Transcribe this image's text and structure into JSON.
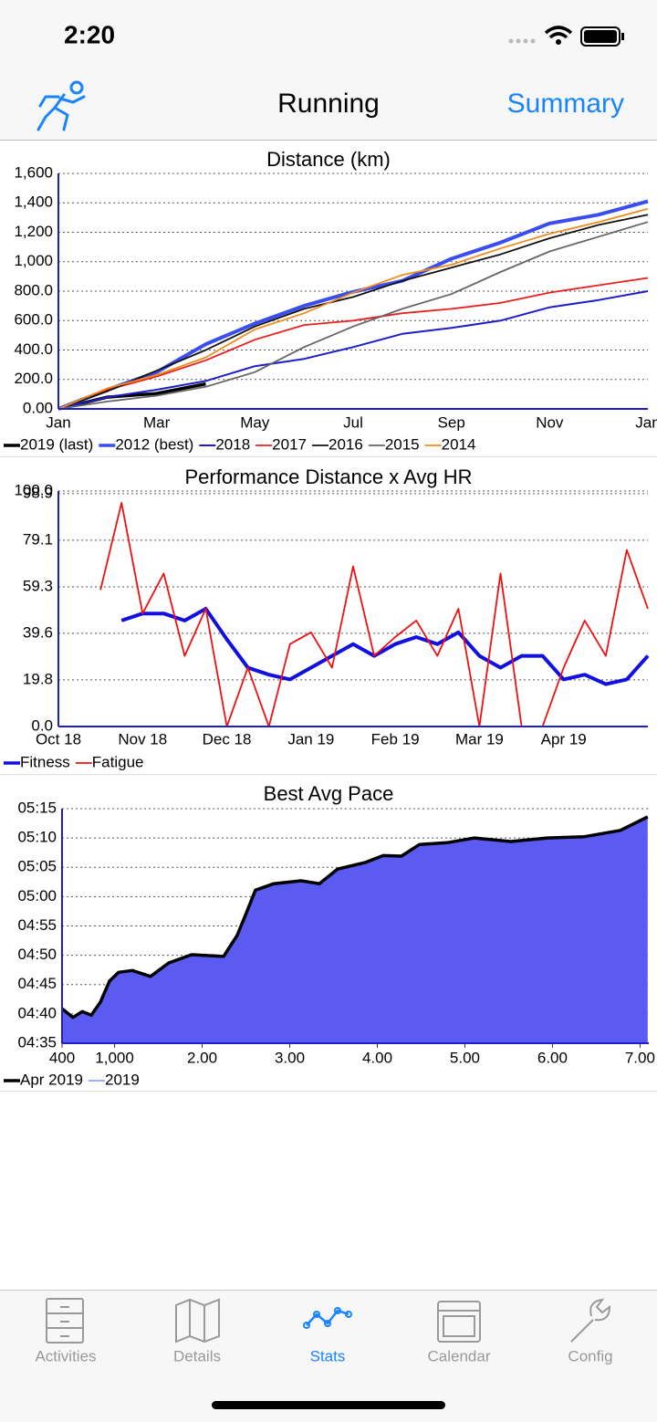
{
  "status_bar": {
    "time": "2:20"
  },
  "nav": {
    "title": "Running",
    "action": "Summary"
  },
  "chart_data": [
    {
      "type": "line",
      "title": "Distance (km)",
      "categories": [
        "Jan",
        null,
        "Mar",
        null,
        "May",
        null,
        "Jul",
        null,
        "Sep",
        null,
        "Nov",
        null,
        "Jan"
      ],
      "ylim": [
        0,
        1600
      ],
      "yticks": [
        {
          "value": 0,
          "label": "0.00"
        },
        {
          "value": 200,
          "label": "200.0"
        },
        {
          "value": 400,
          "label": "400.0"
        },
        {
          "value": 600,
          "label": "600.0"
        },
        {
          "value": 800,
          "label": "800.0"
        },
        {
          "value": 1000,
          "label": "1,000"
        },
        {
          "value": 1200,
          "label": "1,200"
        },
        {
          "value": 1400,
          "label": "1,400"
        },
        {
          "value": 1600,
          "label": "1,600"
        }
      ],
      "grid": true,
      "series": [
        {
          "name": "2019 (last)",
          "color": "#000000",
          "width": 3.5,
          "values": [
            0,
            80,
            105,
            170,
            null,
            null,
            null,
            null,
            null,
            null,
            null,
            null,
            null
          ]
        },
        {
          "name": "2012 (best)",
          "color": "#3a4ef0",
          "width": 4,
          "values": [
            0,
            130,
            250,
            440,
            580,
            700,
            795,
            870,
            1020,
            1130,
            1260,
            1320,
            1410
          ]
        },
        {
          "name": "2018",
          "color": "#1e1ec8",
          "width": 2,
          "values": [
            0,
            80,
            130,
            190,
            290,
            340,
            420,
            510,
            550,
            600,
            690,
            740,
            800
          ]
        },
        {
          "name": "2017",
          "color": "#e82020",
          "width": 1.8,
          "values": [
            0,
            130,
            220,
            330,
            470,
            570,
            600,
            650,
            680,
            720,
            790,
            840,
            890
          ]
        },
        {
          "name": "2016",
          "color": "#111111",
          "width": 1.8,
          "values": [
            0,
            120,
            260,
            400,
            560,
            680,
            760,
            870,
            960,
            1050,
            1160,
            1250,
            1320
          ]
        },
        {
          "name": "2015",
          "color": "#666666",
          "width": 1.8,
          "values": [
            0,
            50,
            90,
            150,
            250,
            420,
            560,
            680,
            780,
            930,
            1070,
            1170,
            1270
          ]
        },
        {
          "name": "2014",
          "color": "#f08c1e",
          "width": 1.8,
          "values": [
            0,
            140,
            230,
            350,
            540,
            650,
            790,
            910,
            980,
            1090,
            1190,
            1270,
            1360
          ]
        }
      ]
    },
    {
      "type": "line",
      "title": "Performance Distance x Avg HR",
      "categories": [
        "Oct 18",
        null,
        null,
        null,
        "Nov 18",
        null,
        null,
        null,
        "Dec 18",
        null,
        null,
        null,
        "Jan 19",
        null,
        null,
        null,
        "Feb 19",
        null,
        null,
        null,
        "Mar 19",
        null,
        null,
        null,
        "Apr 19",
        null,
        null,
        null,
        null
      ],
      "ylim": [
        0,
        100
      ],
      "yticks": [
        {
          "value": 0,
          "label": "0.0"
        },
        19.8,
        39.6,
        59.3,
        79.1,
        98.9,
        {
          "value": 100,
          "label": "100.0"
        }
      ],
      "grid": true,
      "series": [
        {
          "name": "Fitness",
          "color": "#1010e0",
          "width": 4,
          "values": [
            null,
            null,
            null,
            45,
            48,
            48,
            45,
            50,
            37,
            25,
            22,
            20,
            25,
            30,
            35,
            30,
            35,
            38,
            35,
            40,
            30,
            25,
            30,
            30,
            20,
            22,
            18,
            20,
            30
          ]
        },
        {
          "name": "Fatigue",
          "color": "#f01010",
          "width": 1.8,
          "values": [
            null,
            null,
            58,
            95,
            48,
            65,
            30,
            50,
            0,
            25,
            0,
            35,
            40,
            25,
            68,
            30,
            38,
            45,
            30,
            50,
            0,
            65,
            0,
            0,
            25,
            45,
            30,
            75,
            50
          ]
        }
      ]
    },
    {
      "type": "area",
      "title": "Best Avg Pace",
      "x": [
        400,
        525,
        630,
        733,
        838,
        942,
        1046,
        1202,
        1410,
        1619,
        1879,
        2244,
        2400,
        2504,
        2608,
        2817,
        3129,
        3338,
        3546,
        3858,
        4067,
        4275,
        4483,
        4796,
        5108,
        5525,
        5942,
        6358,
        6775,
        7088
      ],
      "xlim": [
        400,
        7100
      ],
      "xticks": [
        400,
        {
          "value": 1000,
          "label": "1,000"
        },
        {
          "value": 2000,
          "label": "2.00"
        },
        {
          "value": 3000,
          "label": "3.00"
        },
        {
          "value": 4000,
          "label": "4.00"
        },
        {
          "value": 5000,
          "label": "5.00"
        },
        {
          "value": 6000,
          "label": "6.00"
        },
        {
          "value": 7000,
          "label": "7.00"
        }
      ],
      "ylim": [
        275,
        315
      ],
      "yticks": [
        {
          "value": 275,
          "label": "04:35"
        },
        {
          "value": 280,
          "label": "04:40"
        },
        {
          "value": 285,
          "label": "04:45"
        },
        {
          "value": 290,
          "label": "04:50"
        },
        {
          "value": 295,
          "label": "04:55"
        },
        {
          "value": 300,
          "label": "05:00"
        },
        {
          "value": 305,
          "label": "05:05"
        },
        {
          "value": 310,
          "label": "05:10"
        },
        {
          "value": 315,
          "label": "05:15"
        }
      ],
      "grid": true,
      "series": [
        {
          "name": "Apr 2019",
          "color": "#000000",
          "width": 3.5,
          "values": [
            280.9,
            279.4,
            280.4,
            279.8,
            282,
            285.6,
            287.1,
            287.4,
            286.4,
            288.7,
            290.1,
            289.8,
            293.4,
            297.2,
            301.1,
            302.2,
            302.7,
            302.2,
            304.7,
            305.8,
            307,
            306.9,
            308.9,
            309.2,
            310,
            309.4,
            310,
            310.2,
            311.3,
            313.6
          ]
        },
        {
          "name": "2019",
          "color": "#8a8aff",
          "fill": "#5b5bf1",
          "width": 1.5,
          "values": [
            280.9,
            279.4,
            280.4,
            279.8,
            282,
            285.6,
            287.1,
            287.4,
            286.4,
            288.7,
            290.1,
            289.8,
            293.4,
            297.2,
            301.1,
            302.2,
            302.7,
            302.2,
            304.7,
            305.8,
            307,
            306.9,
            308.9,
            309.2,
            310,
            309.4,
            310,
            310.2,
            311.3,
            313.6
          ]
        }
      ]
    }
  ],
  "tab_bar": {
    "items": [
      "Activities",
      "Details",
      "Stats",
      "Calendar",
      "Config"
    ],
    "selected": 2
  }
}
